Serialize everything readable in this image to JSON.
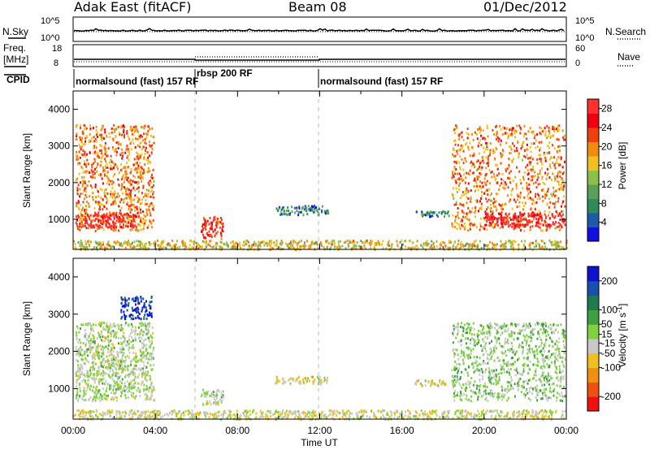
{
  "header": {
    "radar": "Adak East (fitACF)",
    "beam": "Beam 08",
    "date": "01/Dec/2012"
  },
  "labels": {
    "nsky": "N.Sky",
    "nsearch": "N.Search",
    "freq_line1": "Freq.",
    "freq_line2": "[MHz]",
    "nave": "Nave",
    "cpid": "CPID",
    "n_tick_hi": "10^5",
    "n_tick_lo": "10^0",
    "freq_tick_hi": "18",
    "freq_tick_lo": "8",
    "nave_tick_hi": "60",
    "nave_tick_lo": "0"
  },
  "cpid_segments": [
    {
      "label": "normalsound (fast) 157 RF",
      "start_hour": 0
    },
    {
      "label": "rbsp 200 RF",
      "start_hour": 6
    },
    {
      "label": "normalsound (fast) 157 RF",
      "start_hour": 12
    }
  ],
  "x_axis": {
    "label": "Time UT",
    "ticks": [
      "00:00",
      "04:00",
      "08:00",
      "12:00",
      "16:00",
      "20:00",
      "00:00"
    ],
    "range_hours": [
      0,
      24
    ]
  },
  "y_axis": {
    "label": "Slant Range [km]",
    "ticks": [
      "1000",
      "2000",
      "3000",
      "4000"
    ],
    "tick_values": [
      1000,
      2000,
      3000,
      4000
    ],
    "range_km": [
      180,
      4500
    ]
  },
  "colors": {
    "power": [
      "#1010e0",
      "#1e5aa8",
      "#2f8a5c",
      "#5aa05a",
      "#8dc048",
      "#f0c020",
      "#f08a10",
      "#f04010",
      "#f00010",
      "#ff3030"
    ],
    "velocity": [
      "#1010d0",
      "#1850b0",
      "#207a50",
      "#40a040",
      "#80d040",
      "#c8c8c8",
      "#f0c020",
      "#f09010",
      "#f05010",
      "#f01010"
    ]
  },
  "chart_data": [
    {
      "type": "heatmap",
      "title": "",
      "ylabel": "Slant Range [km]",
      "xlabel": "",
      "colorbar": {
        "label": "Power [dB]",
        "ticks": [
          "4",
          "8",
          "12",
          "16",
          "20",
          "24",
          "28"
        ],
        "tick_values": [
          4,
          8,
          12,
          16,
          20,
          24,
          28
        ],
        "range": [
          0,
          30
        ]
      },
      "echo_regions": [
        {
          "t0": 0.1,
          "t1": 3.9,
          "r0": 700,
          "r1": 3600,
          "mean": 20
        },
        {
          "t0": 0.1,
          "t1": 3.0,
          "r0": 800,
          "r1": 1200,
          "mean": 27
        },
        {
          "t0": 6.2,
          "t1": 7.3,
          "r0": 500,
          "r1": 1100,
          "mean": 24
        },
        {
          "t0": 9.8,
          "t1": 12.4,
          "r0": 1150,
          "r1": 1400,
          "mean": 7
        },
        {
          "t0": 16.6,
          "t1": 18.3,
          "r0": 1100,
          "r1": 1250,
          "mean": 7
        },
        {
          "t0": 18.4,
          "t1": 23.9,
          "r0": 700,
          "r1": 3600,
          "mean": 20
        },
        {
          "t0": 20.0,
          "t1": 23.9,
          "r0": 800,
          "r1": 1200,
          "mean": 27
        },
        {
          "t0": 0.0,
          "t1": 24.0,
          "r0": 200,
          "r1": 450,
          "mean": 16
        }
      ]
    },
    {
      "type": "heatmap",
      "title": "",
      "ylabel": "Slant Range [km]",
      "xlabel": "Time UT",
      "colorbar": {
        "label": "Velocity [m s^-1]",
        "ticks": [
          "200",
          "100",
          "50",
          "15",
          "-15",
          "-50",
          "-100",
          "-200"
        ],
        "tick_values": [
          200,
          100,
          50,
          15,
          -15,
          -50,
          -100,
          -200
        ],
        "range": [
          -250,
          250
        ]
      },
      "echo_regions": [
        {
          "t0": 0.1,
          "t1": 3.9,
          "r0": 700,
          "r1": 2800,
          "mean": 0
        },
        {
          "t0": 2.3,
          "t1": 3.8,
          "r0": 2900,
          "r1": 3500,
          "mean": 200
        },
        {
          "t0": 6.2,
          "t1": 7.3,
          "r0": 600,
          "r1": 1000,
          "mean": 0
        },
        {
          "t0": 9.8,
          "t1": 12.4,
          "r0": 1150,
          "r1": 1350,
          "mean": -40
        },
        {
          "t0": 16.6,
          "t1": 18.3,
          "r0": 1100,
          "r1": 1250,
          "mean": -40
        },
        {
          "t0": 18.4,
          "t1": 23.9,
          "r0": 700,
          "r1": 2800,
          "mean": 20
        },
        {
          "t0": 0.0,
          "t1": 24.0,
          "r0": 200,
          "r1": 450,
          "mean": -30
        }
      ]
    }
  ]
}
